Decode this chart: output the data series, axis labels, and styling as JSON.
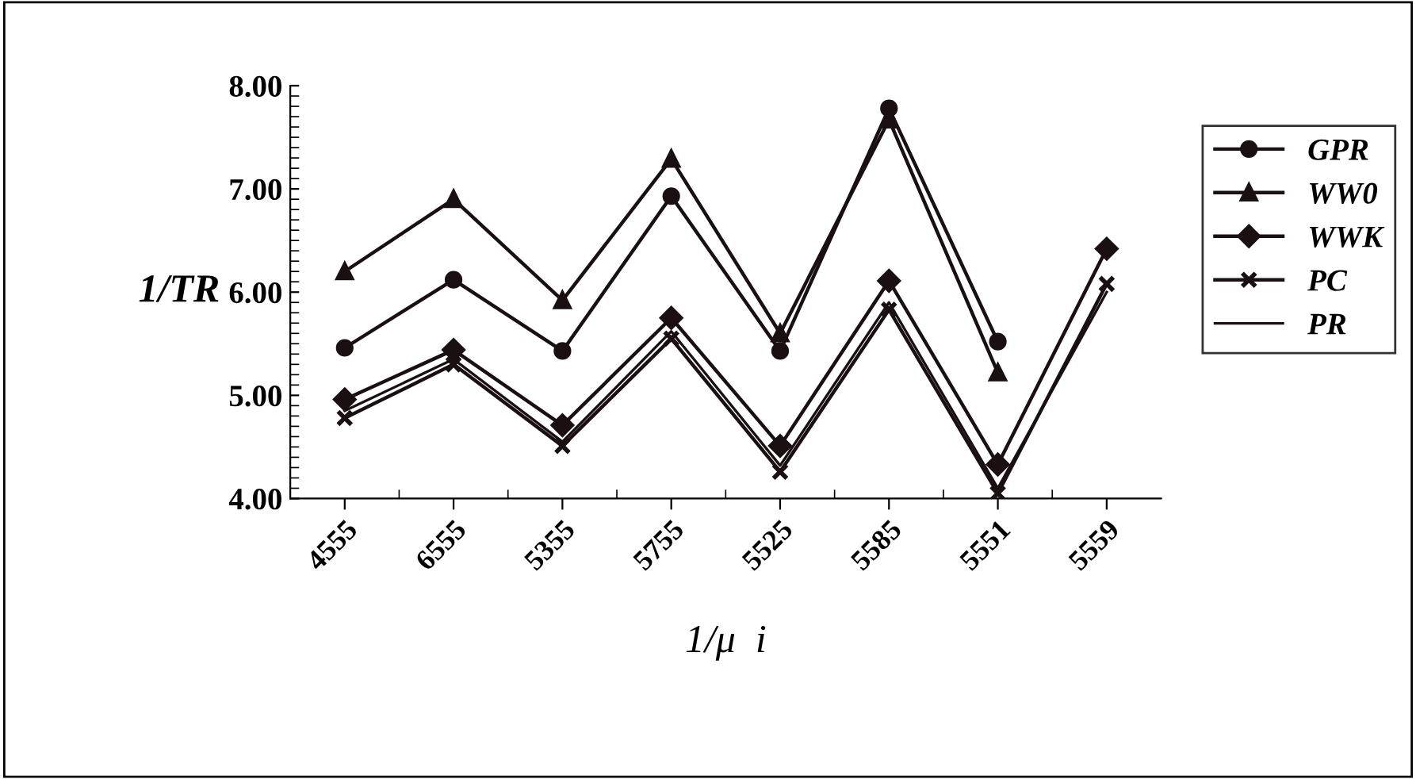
{
  "chart_data": {
    "type": "line",
    "xlabel": "1/μ  i",
    "ylabel": "1/TR",
    "categories": [
      "4555",
      "6555",
      "5355",
      "5755",
      "5525",
      "5585",
      "5551",
      "5559"
    ],
    "series": [
      {
        "name": "GPR",
        "color": "#1a1012",
        "marker": "circle",
        "values": [
          5.46,
          6.12,
          5.43,
          6.93,
          5.43,
          7.78,
          5.52,
          null
        ]
      },
      {
        "name": "WW0",
        "color": "#1a1012",
        "marker": "triangle",
        "values": [
          6.2,
          6.9,
          5.92,
          7.29,
          5.6,
          7.67,
          5.22,
          null
        ]
      },
      {
        "name": "WWK",
        "color": "#1a1012",
        "marker": "diamond",
        "values": [
          4.96,
          5.44,
          4.71,
          5.75,
          4.51,
          6.11,
          4.33,
          6.42
        ]
      },
      {
        "name": "PC",
        "color": "#1a1012",
        "marker": "cross",
        "values": [
          4.78,
          5.3,
          4.51,
          5.55,
          4.26,
          5.83,
          4.05,
          6.08
        ]
      },
      {
        "name": "PR",
        "color": "#1a1012",
        "marker": "none",
        "values": [
          4.85,
          5.35,
          4.55,
          5.62,
          4.32,
          5.9,
          4.1,
          6.0
        ]
      }
    ],
    "ylim": [
      4,
      8
    ],
    "yticks": [
      {
        "value": 4,
        "label": "4.00"
      },
      {
        "value": 5,
        "label": "5.00"
      },
      {
        "value": 6,
        "label": "6.00"
      },
      {
        "value": 7,
        "label": "7.00"
      },
      {
        "value": 8,
        "label": "8.00"
      }
    ],
    "grid": false,
    "legend": "right",
    "line_style": "solid"
  }
}
